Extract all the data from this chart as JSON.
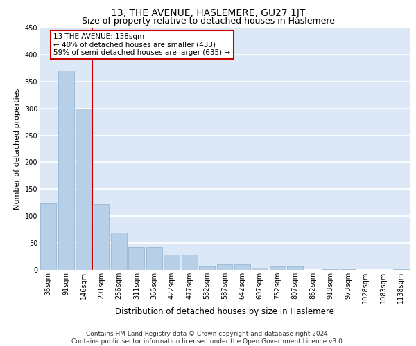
{
  "title": "13, THE AVENUE, HASLEMERE, GU27 1JT",
  "subtitle": "Size of property relative to detached houses in Haslemere",
  "xlabel": "Distribution of detached houses by size in Haslemere",
  "ylabel": "Number of detached properties",
  "categories": [
    "36sqm",
    "91sqm",
    "146sqm",
    "201sqm",
    "256sqm",
    "311sqm",
    "366sqm",
    "422sqm",
    "477sqm",
    "532sqm",
    "587sqm",
    "642sqm",
    "697sqm",
    "752sqm",
    "807sqm",
    "862sqm",
    "918sqm",
    "973sqm",
    "1028sqm",
    "1083sqm",
    "1138sqm"
  ],
  "values": [
    123,
    370,
    300,
    122,
    70,
    42,
    42,
    28,
    28,
    7,
    10,
    10,
    4,
    6,
    6,
    0,
    1,
    1,
    0,
    0,
    1
  ],
  "bar_color": "#b8cfe8",
  "bar_edge_color": "#8eb0d0",
  "vline_x": 2.5,
  "vline_color": "#cc0000",
  "annotation_text": "13 THE AVENUE: 138sqm\n← 40% of detached houses are smaller (433)\n59% of semi-detached houses are larger (635) →",
  "annotation_box_color": "#ffffff",
  "annotation_box_edge": "#cc0000",
  "ylim": [
    0,
    450
  ],
  "yticks": [
    0,
    50,
    100,
    150,
    200,
    250,
    300,
    350,
    400,
    450
  ],
  "footer_text": "Contains HM Land Registry data © Crown copyright and database right 2024.\nContains public sector information licensed under the Open Government Licence v3.0.",
  "bg_color": "#dce8f5",
  "grid_color": "#ffffff",
  "title_fontsize": 10,
  "subtitle_fontsize": 9,
  "xlabel_fontsize": 8.5,
  "ylabel_fontsize": 8,
  "tick_fontsize": 7,
  "annotation_fontsize": 7.5,
  "footer_fontsize": 6.5
}
